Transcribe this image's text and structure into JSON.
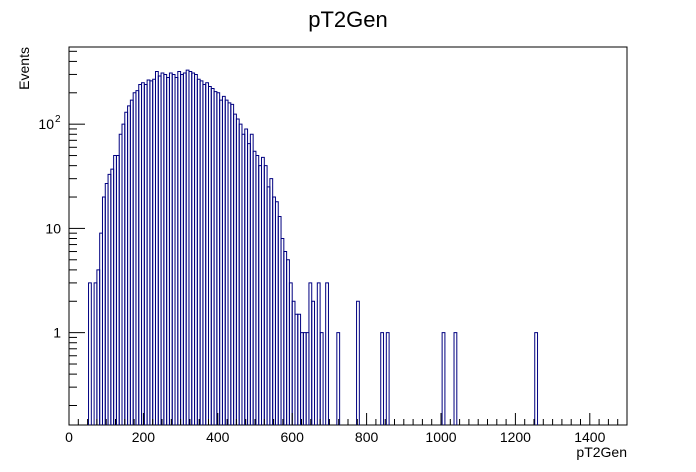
{
  "chart_data": {
    "type": "histogram",
    "title": "pT2Gen",
    "xlabel": "pT2Gen",
    "ylabel": "Events",
    "y_scale": "log",
    "xlim": [
      0,
      1500
    ],
    "ylim": [
      0.13,
      550
    ],
    "bin_width": 7.5,
    "x_ticks": [
      {
        "value": 0,
        "label": "0"
      },
      {
        "value": 200,
        "label": "200"
      },
      {
        "value": 400,
        "label": "400"
      },
      {
        "value": 600,
        "label": "600"
      },
      {
        "value": 800,
        "label": "800"
      },
      {
        "value": 1000,
        "label": "1000"
      },
      {
        "value": 1200,
        "label": "1200"
      },
      {
        "value": 1400,
        "label": "1400"
      }
    ],
    "y_ticks": [
      {
        "value": 1,
        "label": "1"
      },
      {
        "value": 10,
        "label": "10"
      },
      {
        "value": 100,
        "label": "10",
        "sup": "2"
      }
    ],
    "bins": [
      [
        52.5,
        3
      ],
      [
        67.5,
        3
      ],
      [
        75,
        4
      ],
      [
        82.5,
        9
      ],
      [
        90,
        20
      ],
      [
        97.5,
        27
      ],
      [
        105,
        33
      ],
      [
        112.5,
        37
      ],
      [
        120,
        50
      ],
      [
        127.5,
        50
      ],
      [
        135,
        80
      ],
      [
        142.5,
        100
      ],
      [
        150,
        130
      ],
      [
        157.5,
        150
      ],
      [
        165,
        170
      ],
      [
        172.5,
        200
      ],
      [
        180,
        210
      ],
      [
        187.5,
        240
      ],
      [
        195,
        250
      ],
      [
        202.5,
        240
      ],
      [
        210,
        265
      ],
      [
        217.5,
        260
      ],
      [
        225,
        270
      ],
      [
        232.5,
        320
      ],
      [
        240,
        290
      ],
      [
        247.5,
        310
      ],
      [
        255,
        300
      ],
      [
        262.5,
        280
      ],
      [
        270,
        310
      ],
      [
        277.5,
        300
      ],
      [
        285,
        280
      ],
      [
        292.5,
        320
      ],
      [
        300,
        300
      ],
      [
        307.5,
        310
      ],
      [
        315,
        330
      ],
      [
        322.5,
        320
      ],
      [
        330,
        310
      ],
      [
        337.5,
        300
      ],
      [
        345,
        270
      ],
      [
        352.5,
        260
      ],
      [
        360,
        240
      ],
      [
        367.5,
        250
      ],
      [
        375,
        230
      ],
      [
        382.5,
        220
      ],
      [
        390,
        205
      ],
      [
        397.5,
        200
      ],
      [
        405,
        170
      ],
      [
        412.5,
        185
      ],
      [
        420,
        170
      ],
      [
        427.5,
        160
      ],
      [
        435,
        155
      ],
      [
        442.5,
        125
      ],
      [
        450,
        112
      ],
      [
        457.5,
        100
      ],
      [
        465,
        80
      ],
      [
        472.5,
        90
      ],
      [
        480,
        65
      ],
      [
        487.5,
        80
      ],
      [
        495,
        55
      ],
      [
        502.5,
        50
      ],
      [
        510,
        40
      ],
      [
        517.5,
        48
      ],
      [
        525,
        40
      ],
      [
        532.5,
        25
      ],
      [
        540,
        30
      ],
      [
        547.5,
        20
      ],
      [
        555,
        18
      ],
      [
        562.5,
        13
      ],
      [
        570,
        8
      ],
      [
        577.5,
        6
      ],
      [
        585,
        5
      ],
      [
        592.5,
        3
      ],
      [
        600,
        2
      ],
      [
        607.5,
        1.5
      ],
      [
        615,
        1.5
      ],
      [
        622.5,
        1
      ],
      [
        630,
        1
      ],
      [
        637.5,
        1
      ],
      [
        645,
        3
      ],
      [
        652.5,
        2
      ],
      [
        667.5,
        3
      ],
      [
        675.5,
        1
      ],
      [
        690,
        3
      ],
      [
        720,
        1
      ],
      [
        773,
        2
      ],
      [
        838,
        1
      ],
      [
        853,
        1
      ],
      [
        1003,
        1
      ],
      [
        1035,
        1
      ],
      [
        1252,
        1
      ]
    ]
  }
}
